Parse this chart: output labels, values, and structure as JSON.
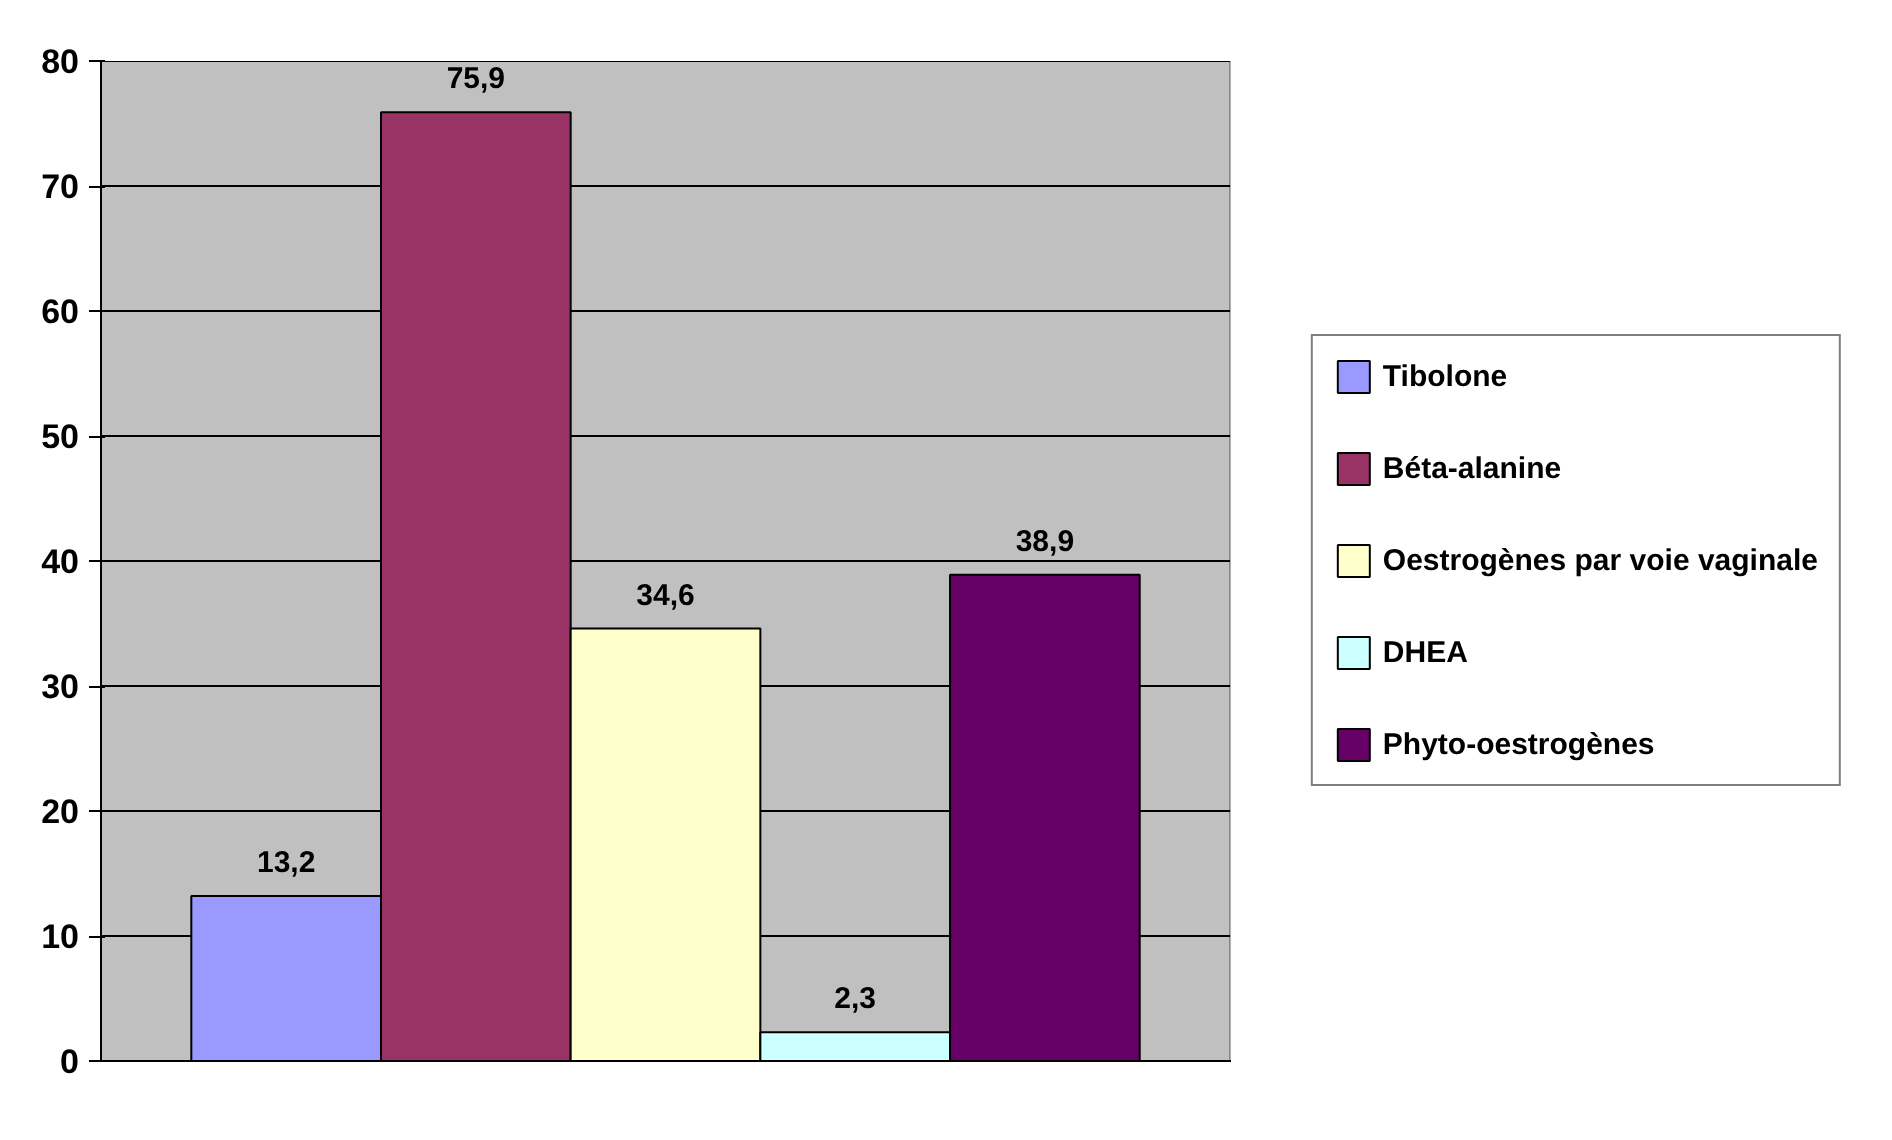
{
  "chart_data": {
    "type": "bar",
    "categories": [
      null
    ],
    "series": [
      {
        "name": "Tibolone",
        "color": "#9999ff",
        "values": [
          13.2
        ],
        "value_labels": [
          "13,2"
        ]
      },
      {
        "name": "Béta-alanine",
        "color": "#993366",
        "values": [
          75.9
        ],
        "value_labels": [
          "75,9"
        ]
      },
      {
        "name": "Oestrogènes par voie vaginale",
        "color": "#ffffcc",
        "values": [
          34.6
        ],
        "value_labels": [
          "34,6"
        ]
      },
      {
        "name": "DHEA",
        "color": "#ccffff",
        "values": [
          2.3
        ],
        "value_labels": [
          "2,3"
        ]
      },
      {
        "name": "Phyto-oestrogènes",
        "color": "#660066",
        "values": [
          38.9
        ],
        "value_labels": [
          "38,9"
        ]
      }
    ],
    "ylim": [
      0,
      80
    ],
    "yticks": [
      0,
      10,
      20,
      30,
      40,
      50,
      60,
      70,
      80
    ],
    "grid": "y",
    "legend": "right"
  }
}
